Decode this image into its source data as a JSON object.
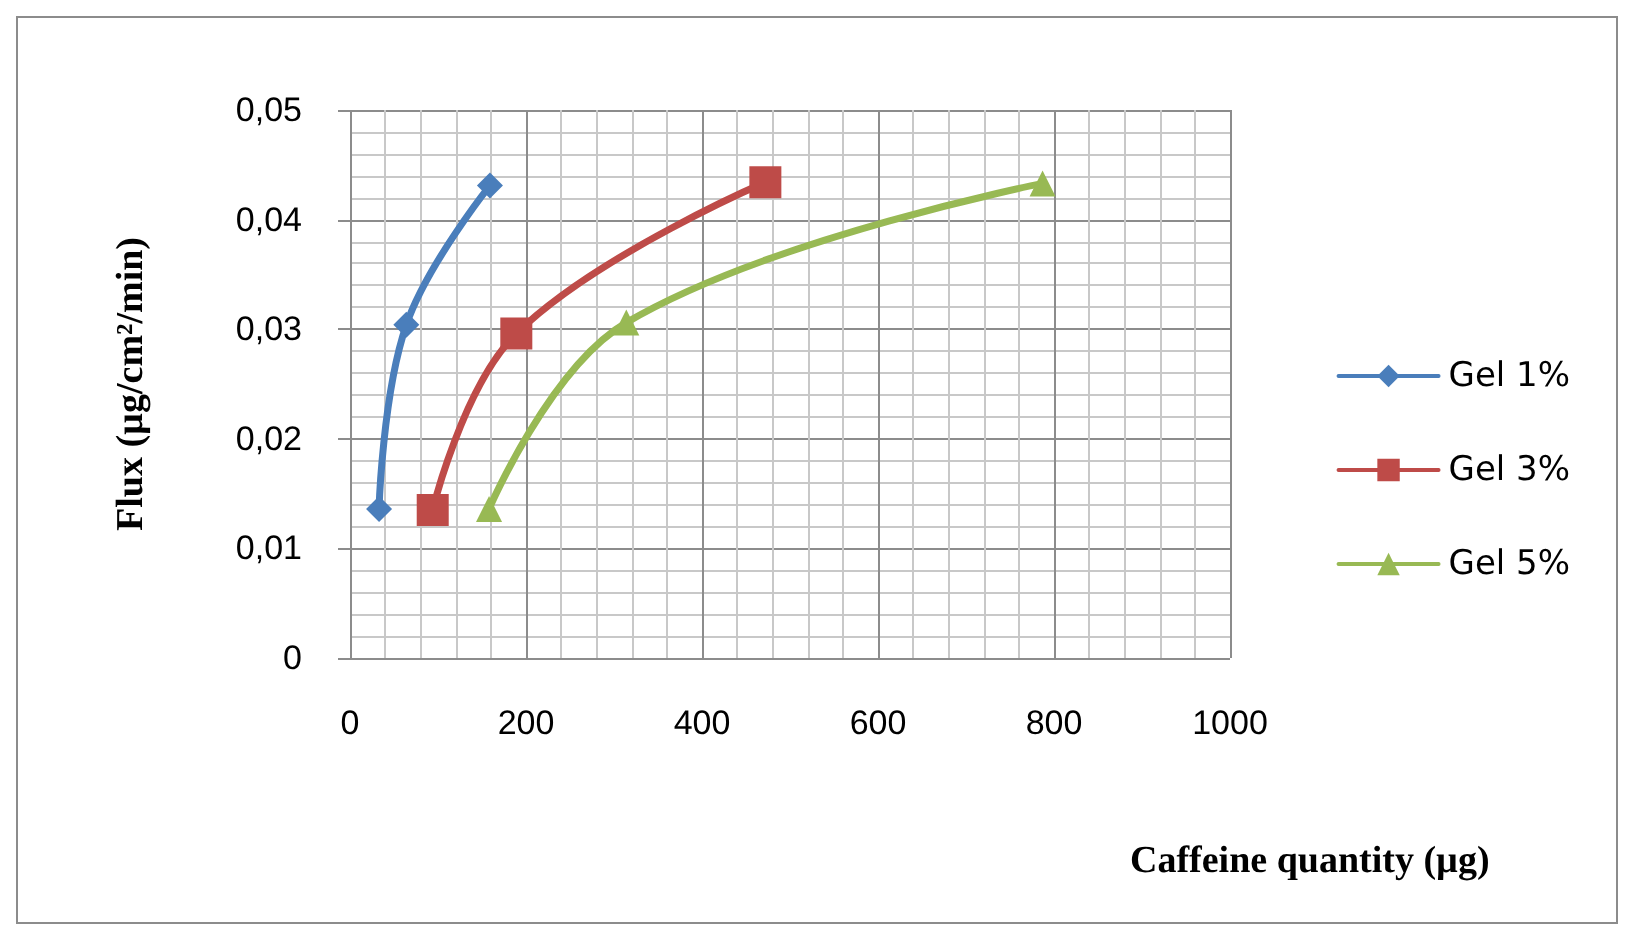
{
  "chart_data": {
    "type": "line",
    "xlabel": "Caffeine quantity (µg)",
    "ylabel": "Flux (µg/cm²/min)",
    "series": [
      {
        "name": "Gel 1%",
        "color": "#4a7ebb",
        "marker": "diamond",
        "x": [
          33,
          64,
          159
        ],
        "values": [
          0.0136,
          0.0304,
          0.0431
        ]
      },
      {
        "name": "Gel 3%",
        "color": "#be4b48",
        "marker": "square",
        "x": [
          94,
          189,
          472
        ],
        "values": [
          0.0135,
          0.0296,
          0.0434
        ]
      },
      {
        "name": "Gel 5%",
        "color": "#98b954",
        "marker": "triangle",
        "x": [
          158,
          314,
          787
        ],
        "values": [
          0.0136,
          0.0306,
          0.0433
        ]
      }
    ],
    "xlim": [
      0,
      1000
    ],
    "xticks": [
      0,
      200,
      400,
      600,
      800,
      1000
    ],
    "ylim": [
      0,
      0.05
    ],
    "yticks": [
      0,
      {
        "value": 0.01,
        "label": "0,01"
      },
      {
        "value": 0.02,
        "label": "0,02"
      },
      {
        "value": 0.03,
        "label": "0,03"
      },
      {
        "value": 0.04,
        "label": "0,04"
      },
      {
        "value": 0.05,
        "label": "0,05"
      }
    ],
    "grid": true,
    "legend": "right",
    "line_style": "solid"
  }
}
